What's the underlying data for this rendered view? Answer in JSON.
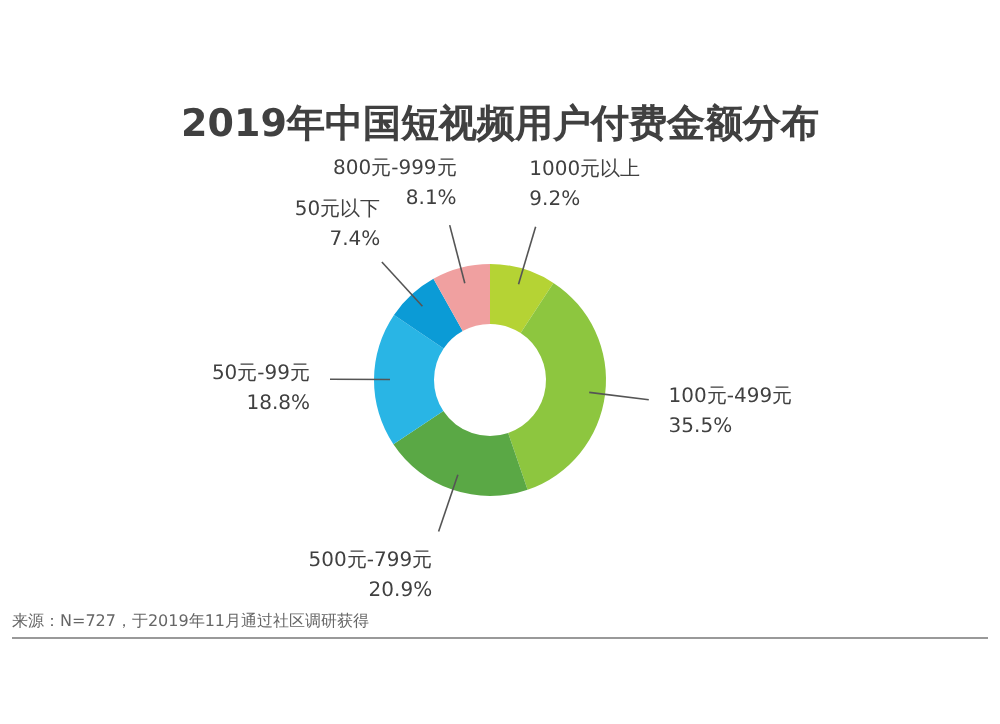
{
  "chart_data": {
    "type": "donut",
    "title": "2019年中国短视频用户付费金额分布",
    "categories": [
      "1000元以上",
      "100元-499元",
      "500元-799元",
      "50元-99元",
      "50元以下",
      "800元-999元"
    ],
    "values": [
      9.2,
      35.5,
      20.9,
      18.8,
      7.4,
      8.1
    ],
    "colors": [
      "#b5d334",
      "#8dc63f",
      "#5aa845",
      "#29b5e5",
      "#0b9bd6",
      "#f0a0a0"
    ],
    "value_labels": [
      "9.2%",
      "35.5%",
      "20.9%",
      "18.8%",
      "7.4%",
      "8.1%"
    ],
    "annotations": [
      "来源：N=727，于2019年11月通过社区调研获得"
    ]
  }
}
